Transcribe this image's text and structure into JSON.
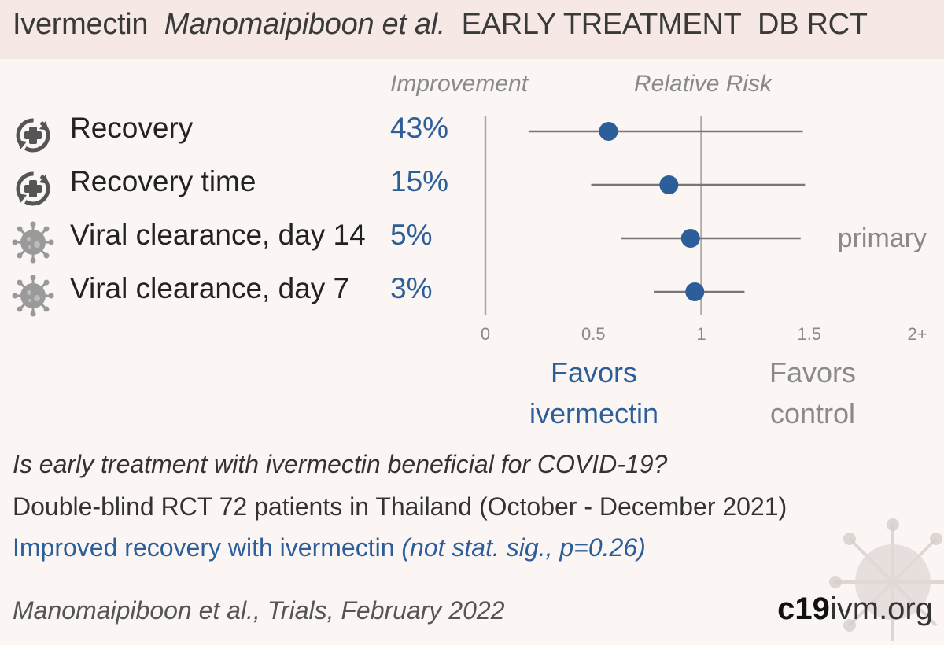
{
  "header": {
    "drug": "Ivermectin",
    "authors": "Manomaipiboon et al.",
    "stage": "EARLY TREATMENT",
    "design": "DB RCT"
  },
  "column_headers": {
    "improvement": "Improvement",
    "relative_risk": "Relative Risk"
  },
  "outcomes": [
    {
      "icon": "recovery-icon",
      "label": "Recovery",
      "improvement": "43%"
    },
    {
      "icon": "recovery-icon",
      "label": "Recovery time",
      "improvement": "15%"
    },
    {
      "icon": "virus-icon",
      "label": "Viral clearance, day 14",
      "improvement": "5%"
    },
    {
      "icon": "virus-icon",
      "label": "Viral clearance, day 7",
      "improvement": "3%"
    }
  ],
  "chart_data": {
    "type": "forest",
    "x_axis": {
      "ticks": [
        "0",
        "0.5",
        "1",
        "1.5",
        "2+"
      ],
      "range": [
        0,
        2
      ],
      "reference_line": 1
    },
    "points": [
      {
        "category": "Recovery",
        "value": 0.57,
        "ci": [
          0.2,
          1.47
        ],
        "note": ""
      },
      {
        "category": "Recovery time",
        "value": 0.85,
        "ci": [
          0.49,
          1.48
        ],
        "note": ""
      },
      {
        "category": "Viral clearance, day 14",
        "value": 0.95,
        "ci": [
          0.63,
          1.46
        ],
        "note": "primary"
      },
      {
        "category": "Viral clearance, day 7",
        "value": 0.97,
        "ci": [
          0.78,
          1.2
        ],
        "note": ""
      }
    ],
    "favors_left": [
      "Favors",
      "ivermectin"
    ],
    "favors_right": [
      "Favors",
      "control"
    ]
  },
  "question": "Is early treatment with ivermectin beneficial for COVID-19?",
  "design_line": "Double-blind RCT 72 patients in Thailand (October - December 2021)",
  "result_main": "Improved recovery with ivermectin",
  "result_sig": "(not stat. sig., p=0.26)",
  "citation": "Manomaipiboon et al., Trials, February 2022",
  "brand": {
    "bold": "c19",
    "rest": "ivm.org"
  },
  "colors": {
    "blue": "#2c5e9a",
    "grey": "#8a8a8a",
    "header_bg": "#f5e8e5",
    "bg": "#fbf5f4"
  }
}
